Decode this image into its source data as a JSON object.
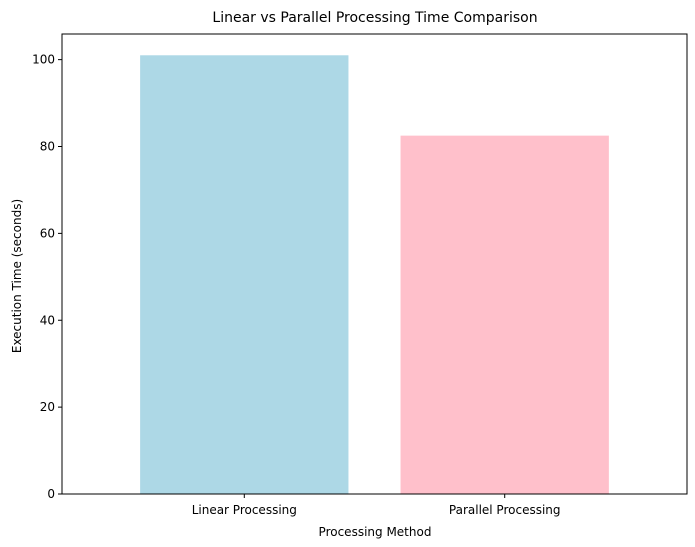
{
  "chart_data": {
    "type": "bar",
    "title": "Linear vs Parallel Processing Time Comparison",
    "xlabel": "Processing Method",
    "ylabel": "Execution Time (seconds)",
    "categories": [
      "Linear Processing",
      "Parallel Processing"
    ],
    "values": [
      101.0,
      82.5
    ],
    "colors": [
      "#add8e6",
      "#ffc0cb"
    ],
    "ylim": [
      0,
      105.9
    ],
    "yticks": [
      0,
      20,
      40,
      60,
      80,
      100
    ],
    "ytick_labels": [
      "0",
      "20",
      "40",
      "60",
      "80",
      "100"
    ],
    "grid": false,
    "legend": "none"
  }
}
